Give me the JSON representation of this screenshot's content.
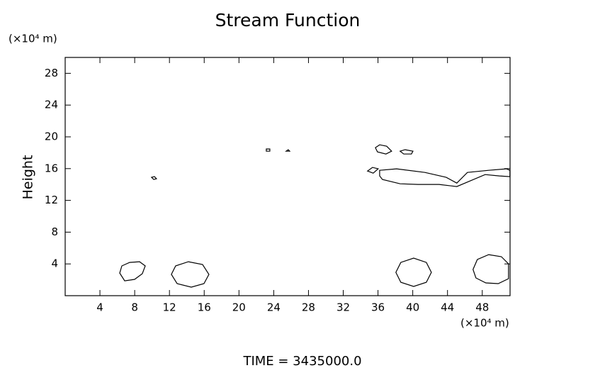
{
  "chart_data": {
    "type": "contour",
    "title": "Stream Function",
    "ylabel": "Height",
    "yunit": "(×10⁴ m)",
    "xunit": "(×10⁴ m)",
    "footer": "TIME = 3435000.0",
    "xlim": [
      0,
      51.2
    ],
    "ylim": [
      0,
      30
    ],
    "xticks": [
      4,
      8,
      12,
      16,
      20,
      24,
      28,
      32,
      36,
      40,
      44,
      48
    ],
    "yticks": [
      4,
      8,
      12,
      16,
      20,
      24,
      28
    ],
    "color": "#000000",
    "contours": [
      {
        "x": [
          6.28,
          6.52,
          7.42,
          8.56,
          9.21,
          8.88,
          7.99,
          6.85
        ],
        "y": [
          2.85,
          3.75,
          4.19,
          4.28,
          3.75,
          2.77,
          2.05,
          1.87
        ]
      },
      {
        "x": [
          12.22,
          12.71,
          14.18,
          15.81,
          16.54,
          15.97,
          14.51,
          12.88
        ],
        "y": [
          2.68,
          3.75,
          4.28,
          3.93,
          2.68,
          1.52,
          1.07,
          1.52
        ]
      },
      {
        "x": [
          38.06,
          38.63,
          40.1,
          41.56,
          42.14,
          41.56,
          40.1,
          38.63
        ],
        "y": [
          2.94,
          4.19,
          4.73,
          4.19,
          2.94,
          1.69,
          1.16,
          1.69
        ]
      },
      {
        "x": [
          46.94,
          47.43,
          48.74,
          50.2,
          51.02,
          51.02,
          49.84,
          48.41,
          47.27
        ],
        "y": [
          3.3,
          4.55,
          5.17,
          4.91,
          4.01,
          2.14,
          1.52,
          1.61,
          2.23
        ]
      },
      {
        "x": [
          9.94,
          10.27,
          10.51,
          10.19
        ],
        "y": [
          14.9,
          14.99,
          14.72,
          14.63
        ]
      },
      {
        "x": [
          23.15,
          23.55,
          23.55,
          23.15
        ],
        "y": [
          18.47,
          18.47,
          18.2,
          18.2
        ]
      },
      {
        "x": [
          25.43,
          25.67,
          25.84
        ],
        "y": [
          18.2,
          18.38,
          18.2
        ]
      },
      {
        "x": [
          35.7,
          36.19,
          37.0,
          37.57,
          36.92,
          35.94
        ],
        "y": [
          18.64,
          19.0,
          18.82,
          18.2,
          17.84,
          18.11
        ]
      },
      {
        "x": [
          38.55,
          39.12,
          40.02,
          39.85,
          38.96
        ],
        "y": [
          18.2,
          18.38,
          18.2,
          17.84,
          17.84
        ]
      },
      {
        "x": [
          34.8,
          35.37,
          36.02,
          35.45
        ],
        "y": [
          15.7,
          16.15,
          15.97,
          15.43
        ]
      },
      {
        "x": [
          36.19,
          38.14,
          41.4,
          43.85,
          45.07,
          46.29,
          48.74,
          50.77,
          51.18,
          51.18,
          49.96,
          48.33,
          45.07,
          43.03,
          40.59,
          38.55,
          36.51,
          36.19
        ],
        "y": [
          15.79,
          15.97,
          15.52,
          14.9,
          14.18,
          15.52,
          15.79,
          15.97,
          15.79,
          14.99,
          15.08,
          15.25,
          13.74,
          14.01,
          14.01,
          14.09,
          14.63,
          15.08
        ]
      }
    ]
  }
}
